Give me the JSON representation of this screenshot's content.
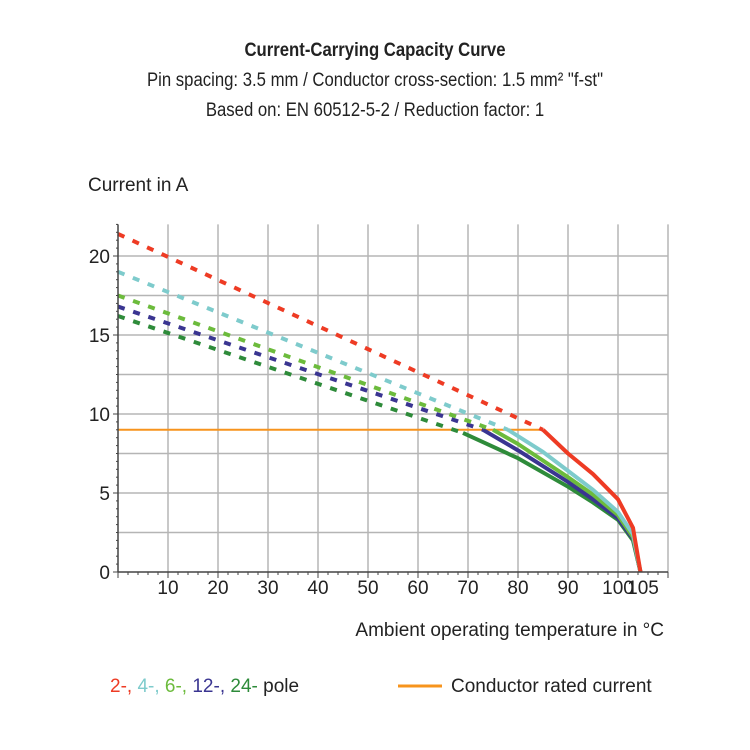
{
  "chart_data": {
    "type": "line",
    "title": "Current-Carrying Capacity Curve",
    "subtitle": [
      "Pin spacing: 3.5 mm / Conductor cross-section: 1.5 mm² \"f-st\"",
      "Based on: EN 60512-5-2 / Reduction factor: 1"
    ],
    "ylabel": "Current in A",
    "xlabel": "Ambient operating temperature in °C",
    "xlim": [
      0,
      110
    ],
    "ylim": [
      0,
      22
    ],
    "xticks": [
      10,
      20,
      30,
      40,
      50,
      60,
      70,
      80,
      90,
      100,
      105
    ],
    "yticks": [
      0,
      5,
      10,
      15,
      20
    ],
    "grid": true,
    "legend_placement": "bottom",
    "series": [
      {
        "pole": "2-",
        "color": "#ee3b24",
        "dashed": [
          [
            0,
            21.4
          ],
          [
            85,
            9
          ]
        ],
        "solid": [
          [
            85,
            9
          ],
          [
            90,
            7.5
          ],
          [
            95,
            6.2
          ],
          [
            100,
            4.6
          ],
          [
            103,
            2.8
          ],
          [
            104.5,
            0
          ]
        ]
      },
      {
        "pole": "4-",
        "color": "#7ecbcc",
        "dashed": [
          [
            0,
            19
          ],
          [
            78,
            9
          ]
        ],
        "solid": [
          [
            78,
            9
          ],
          [
            85,
            7.6
          ],
          [
            90,
            6.4
          ],
          [
            95,
            5.2
          ],
          [
            100,
            3.8
          ],
          [
            103,
            2.4
          ],
          [
            104.5,
            0
          ]
        ]
      },
      {
        "pole": "6-",
        "color": "#6cbb3c",
        "dashed": [
          [
            0,
            17.5
          ],
          [
            75,
            9
          ]
        ],
        "solid": [
          [
            75,
            9
          ],
          [
            80,
            8.1
          ],
          [
            90,
            6.0
          ],
          [
            95,
            4.9
          ],
          [
            100,
            3.6
          ],
          [
            103,
            2.2
          ],
          [
            104.5,
            0
          ]
        ]
      },
      {
        "pole": "12-",
        "color": "#3a3591",
        "dashed": [
          [
            0,
            16.8
          ],
          [
            73,
            9
          ]
        ],
        "solid": [
          [
            73,
            9
          ],
          [
            80,
            7.7
          ],
          [
            90,
            5.7
          ],
          [
            95,
            4.6
          ],
          [
            100,
            3.4
          ],
          [
            103,
            2.1
          ],
          [
            104.5,
            0
          ]
        ]
      },
      {
        "pole": "24-",
        "color": "#2e8b3a",
        "dashed": [
          [
            0,
            16.2
          ],
          [
            69,
            8.8
          ]
        ],
        "solid": [
          [
            69,
            8.8
          ],
          [
            80,
            7.2
          ],
          [
            90,
            5.4
          ],
          [
            95,
            4.4
          ],
          [
            100,
            3.3
          ],
          [
            103,
            2.0
          ],
          [
            104.5,
            0
          ]
        ]
      }
    ],
    "rated_current": {
      "label": "Conductor rated current",
      "value": 9,
      "x_range": [
        0,
        85
      ],
      "color": "#f7941d"
    },
    "legend": {
      "suffix": " pole",
      "separator": ", "
    }
  }
}
